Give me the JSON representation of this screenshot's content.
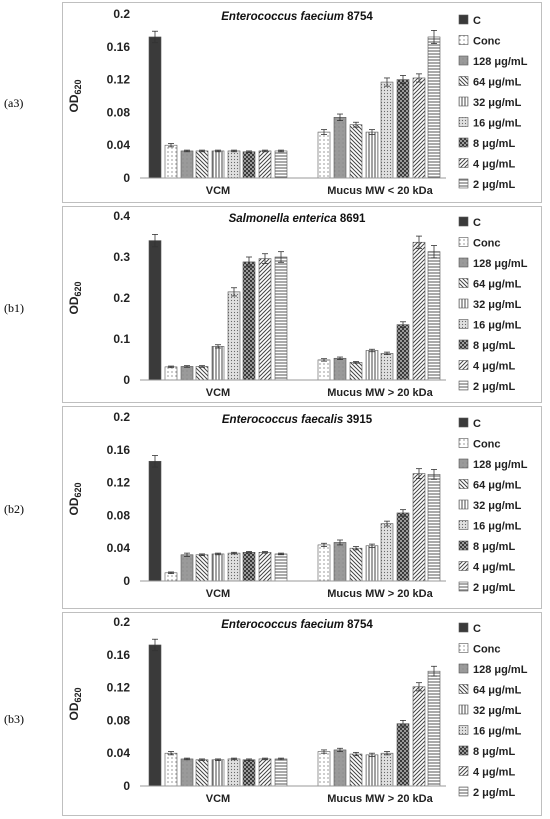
{
  "legend": [
    "C",
    "Conc",
    "128 μg/mL",
    "64 μg/mL",
    "32 μg/mL",
    "16 μg/mL",
    "8 μg/mL",
    "4 μg/mL",
    "2 μg/mL"
  ],
  "chart_data": [
    {
      "type": "bar",
      "panel_label": "(a3)",
      "title_italic": "Enterococcus faecium",
      "title_rest": " 8754",
      "ylabel": "OD",
      "ylabel_sub": "620",
      "ylim": [
        0,
        0.2
      ],
      "yticks": [
        "0",
        "0.04",
        "0.08",
        "0.12",
        "0.16",
        "0.2"
      ],
      "categories": [
        "VCM",
        "Mucus MW < 20 kDa"
      ],
      "groups": [
        [
          0.172,
          0.04,
          0.033,
          0.033,
          0.033,
          0.033,
          0.032,
          0.033,
          0.033
        ],
        [
          null,
          0.056,
          0.074,
          0.065,
          0.056,
          0.117,
          0.12,
          0.122,
          0.172
        ]
      ],
      "errors": [
        [
          0.007,
          0.002,
          0.001,
          0.001,
          0.001,
          0.001,
          0.001,
          0.001,
          0.001
        ],
        [
          null,
          0.003,
          0.004,
          0.003,
          0.003,
          0.005,
          0.005,
          0.005,
          0.008
        ]
      ]
    },
    {
      "type": "bar",
      "panel_label": "(b1)",
      "title_italic": "Salmonella enterica",
      "title_rest": " 8691",
      "ylabel": "OD",
      "ylabel_sub": "620",
      "ylim": [
        0,
        0.4
      ],
      "yticks": [
        "0",
        "0.1",
        "0.2",
        "0.3",
        "0.4"
      ],
      "categories": [
        "VCM",
        "Mucus MW > 20 kDa"
      ],
      "groups": [
        [
          0.34,
          0.032,
          0.033,
          0.033,
          0.082,
          0.215,
          0.288,
          0.296,
          0.3
        ],
        [
          null,
          0.049,
          0.053,
          0.043,
          0.072,
          0.065,
          0.135,
          0.336,
          0.313
        ]
      ],
      "errors": [
        [
          0.015,
          0.002,
          0.002,
          0.002,
          0.004,
          0.01,
          0.012,
          0.012,
          0.013
        ],
        [
          null,
          0.003,
          0.003,
          0.002,
          0.003,
          0.003,
          0.007,
          0.015,
          0.015
        ]
      ]
    },
    {
      "type": "bar",
      "panel_label": "(b2)",
      "title_italic": "Enterococcus faecalis",
      "title_rest": " 3915",
      "ylabel": "OD",
      "ylabel_sub": "620",
      "ylim": [
        0,
        0.2
      ],
      "yticks": [
        "0",
        "0.04",
        "0.08",
        "0.12",
        "0.16",
        "0.2"
      ],
      "categories": [
        "VCM",
        "Mucus MW > 20 kDa"
      ],
      "groups": [
        [
          0.146,
          0.01,
          0.032,
          0.032,
          0.033,
          0.034,
          0.035,
          0.035,
          0.033
        ],
        [
          null,
          0.044,
          0.047,
          0.04,
          0.043,
          0.07,
          0.083,
          0.131,
          0.13
        ]
      ],
      "errors": [
        [
          0.007,
          0.001,
          0.002,
          0.001,
          0.001,
          0.001,
          0.001,
          0.001,
          0.001
        ],
        [
          null,
          0.002,
          0.003,
          0.002,
          0.002,
          0.003,
          0.004,
          0.006,
          0.006
        ]
      ]
    },
    {
      "type": "bar",
      "panel_label": "(b3)",
      "title_italic": "Enterococcus faecium",
      "title_rest": " 8754",
      "ylabel": "OD",
      "ylabel_sub": "620",
      "ylim": [
        0,
        0.2
      ],
      "yticks": [
        "0",
        "0.04",
        "0.08",
        "0.12",
        "0.16",
        "0.2"
      ],
      "categories": [
        "VCM",
        "Mucus MW > 20 kDa"
      ],
      "groups": [
        [
          0.172,
          0.04,
          0.033,
          0.032,
          0.032,
          0.033,
          0.032,
          0.033,
          0.033
        ],
        [
          null,
          0.042,
          0.044,
          0.039,
          0.038,
          0.04,
          0.076,
          0.121,
          0.14
        ]
      ],
      "errors": [
        [
          0.007,
          0.002,
          0.001,
          0.001,
          0.001,
          0.001,
          0.001,
          0.001,
          0.001
        ],
        [
          null,
          0.002,
          0.002,
          0.002,
          0.002,
          0.002,
          0.004,
          0.005,
          0.006
        ]
      ]
    }
  ]
}
